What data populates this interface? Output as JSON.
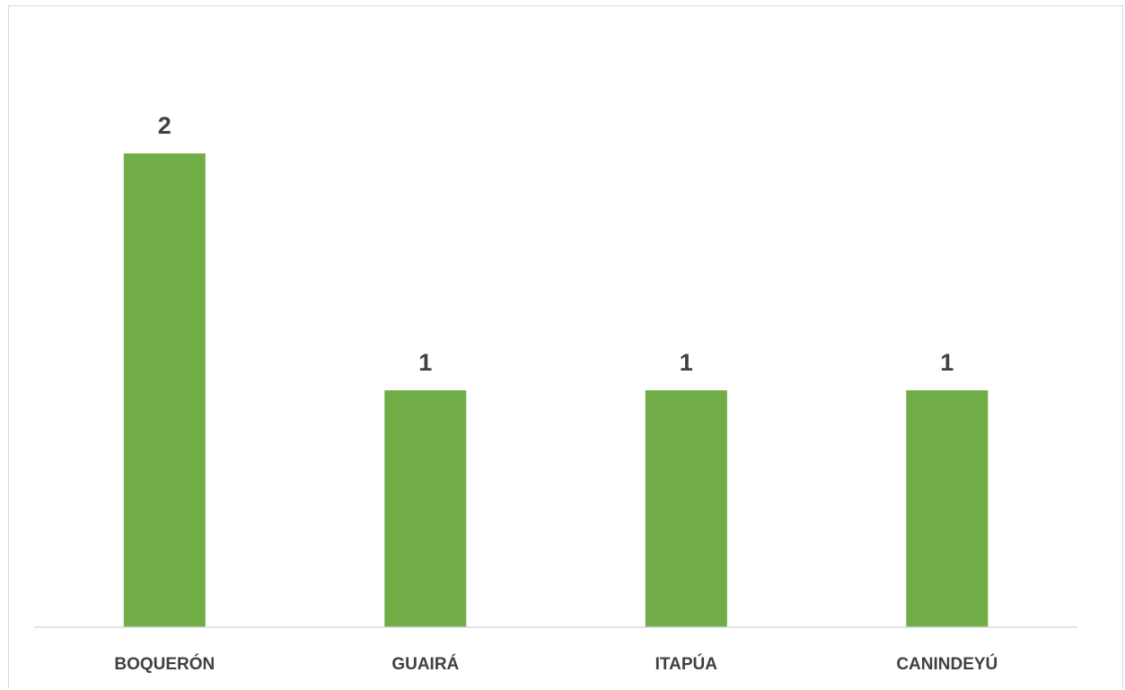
{
  "chart_data": {
    "type": "bar",
    "title": "",
    "xlabel": "",
    "ylabel": "",
    "categories": [
      "BOQUERÓN",
      "GUAIRÁ",
      "ITAPÚA",
      "CANINDEYÚ"
    ],
    "values": [
      2,
      1,
      1,
      1
    ],
    "ylim": [
      0,
      2.2
    ],
    "grid": false,
    "legend": "none",
    "colors": {
      "bar": "#70ad47",
      "axis": "#d9d9d9",
      "text": "#404040"
    }
  }
}
